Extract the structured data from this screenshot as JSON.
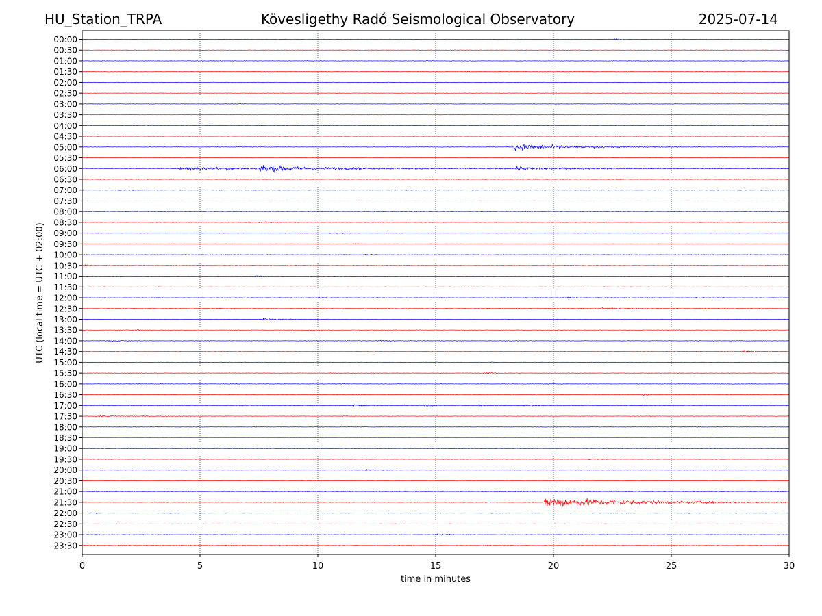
{
  "header": {
    "station": "HU_Station_TRPA",
    "observatory": "Kövesligethy Radó Seismological Observatory",
    "date": "2025-07-14"
  },
  "chart_data": {
    "type": "line",
    "title": "Kövesligethy Radó Seismological Observatory",
    "xlabel": "time in minutes",
    "ylabel": "UTC (local time = UTC + 02:00)",
    "xlim": [
      0,
      30
    ],
    "xticks": [
      0,
      5,
      10,
      15,
      20,
      25,
      30
    ],
    "grid": "vertical dotted at each x tick",
    "trace_colors": [
      "#0000ff",
      "#ff0000"
    ],
    "rows": [
      {
        "label": "00:00",
        "events": [
          {
            "t": 22.5,
            "amp": 0.4,
            "dur": 0.8
          }
        ]
      },
      {
        "label": "00:30",
        "events": []
      },
      {
        "label": "01:00",
        "events": []
      },
      {
        "label": "01:30",
        "events": []
      },
      {
        "label": "02:00",
        "events": []
      },
      {
        "label": "02:30",
        "events": []
      },
      {
        "label": "03:00",
        "events": []
      },
      {
        "label": "03:30",
        "events": []
      },
      {
        "label": "04:00",
        "events": []
      },
      {
        "label": "04:30",
        "events": []
      },
      {
        "label": "05:00",
        "events": [
          {
            "t": 18.3,
            "amp": 1.2,
            "dur": 7
          }
        ]
      },
      {
        "label": "05:30",
        "events": []
      },
      {
        "label": "06:00",
        "events": [
          {
            "t": 4.1,
            "amp": 0.5,
            "dur": 26
          },
          {
            "t": 7.5,
            "amp": 1.0,
            "dur": 4.5
          },
          {
            "t": 18.3,
            "amp": 0.5,
            "dur": 7
          }
        ]
      },
      {
        "label": "06:30",
        "events": []
      },
      {
        "label": "07:00",
        "events": [
          {
            "t": 1.5,
            "amp": 0.2,
            "dur": 2
          }
        ]
      },
      {
        "label": "07:30",
        "events": []
      },
      {
        "label": "08:00",
        "events": []
      },
      {
        "label": "08:30",
        "events": [
          {
            "t": 7.0,
            "amp": 0.25,
            "dur": 2
          }
        ]
      },
      {
        "label": "09:00",
        "events": [
          {
            "t": 10.5,
            "amp": 0.25,
            "dur": 1.5
          }
        ]
      },
      {
        "label": "09:30",
        "events": [
          {
            "t": 11.5,
            "amp": 0.2,
            "dur": 1
          }
        ]
      },
      {
        "label": "10:00",
        "events": [
          {
            "t": 12.0,
            "amp": 0.8,
            "dur": 0.6
          }
        ]
      },
      {
        "label": "10:30",
        "events": [
          {
            "t": 0.1,
            "amp": 0.3,
            "dur": 0.5
          }
        ]
      },
      {
        "label": "11:00",
        "events": [
          {
            "t": 7.3,
            "amp": 0.25,
            "dur": 1
          }
        ]
      },
      {
        "label": "11:30",
        "events": []
      },
      {
        "label": "12:00",
        "events": [
          {
            "t": 10.0,
            "amp": 0.2,
            "dur": 1.5
          },
          {
            "t": 20.5,
            "amp": 0.3,
            "dur": 1
          },
          {
            "t": 26.0,
            "amp": 0.25,
            "dur": 0.5
          }
        ]
      },
      {
        "label": "12:30",
        "events": [
          {
            "t": 22.0,
            "amp": 0.3,
            "dur": 2
          }
        ]
      },
      {
        "label": "13:00",
        "events": [
          {
            "t": 7.5,
            "amp": 0.35,
            "dur": 2.5
          }
        ]
      },
      {
        "label": "13:30",
        "events": [
          {
            "t": 2.2,
            "amp": 0.35,
            "dur": 0.8
          }
        ]
      },
      {
        "label": "14:00",
        "events": [
          {
            "t": 1.0,
            "amp": 0.2,
            "dur": 2
          },
          {
            "t": 12.5,
            "amp": 0.2,
            "dur": 1
          }
        ]
      },
      {
        "label": "14:30",
        "events": [
          {
            "t": 28.0,
            "amp": 0.25,
            "dur": 2
          }
        ]
      },
      {
        "label": "15:00",
        "events": []
      },
      {
        "label": "15:30",
        "events": [
          {
            "t": 17.0,
            "amp": 0.25,
            "dur": 1.5
          }
        ]
      },
      {
        "label": "16:00",
        "events": []
      },
      {
        "label": "16:30",
        "events": [
          {
            "t": 23.8,
            "amp": 0.35,
            "dur": 0.6
          }
        ]
      },
      {
        "label": "17:00",
        "events": [
          {
            "t": 11.5,
            "amp": 0.35,
            "dur": 1
          },
          {
            "t": 14.5,
            "amp": 0.35,
            "dur": 1
          },
          {
            "t": 16.8,
            "amp": 0.3,
            "dur": 1
          },
          {
            "t": 18.7,
            "amp": 0.3,
            "dur": 2
          }
        ]
      },
      {
        "label": "17:30",
        "events": [
          {
            "t": 0.5,
            "amp": 0.2,
            "dur": 6
          },
          {
            "t": 11.0,
            "amp": 0.2,
            "dur": 0.5
          }
        ]
      },
      {
        "label": "18:00",
        "events": []
      },
      {
        "label": "18:30",
        "events": []
      },
      {
        "label": "19:00",
        "events": []
      },
      {
        "label": "19:30",
        "events": [
          {
            "t": 21.5,
            "amp": 0.25,
            "dur": 0.8
          }
        ]
      },
      {
        "label": "20:00",
        "events": [
          {
            "t": 12.0,
            "amp": 0.25,
            "dur": 1.3
          }
        ]
      },
      {
        "label": "20:30",
        "events": []
      },
      {
        "label": "21:00",
        "events": []
      },
      {
        "label": "21:30",
        "events": [
          {
            "t": 19.6,
            "amp": 2.0,
            "dur": 10.4
          }
        ]
      },
      {
        "label": "22:00",
        "events": [
          {
            "t": 0.3,
            "amp": 0.3,
            "dur": 0.5
          }
        ]
      },
      {
        "label": "22:30",
        "events": []
      },
      {
        "label": "23:00",
        "events": [
          {
            "t": 15.0,
            "amp": 0.2,
            "dur": 1.5
          }
        ]
      },
      {
        "label": "23:30",
        "events": []
      }
    ]
  }
}
